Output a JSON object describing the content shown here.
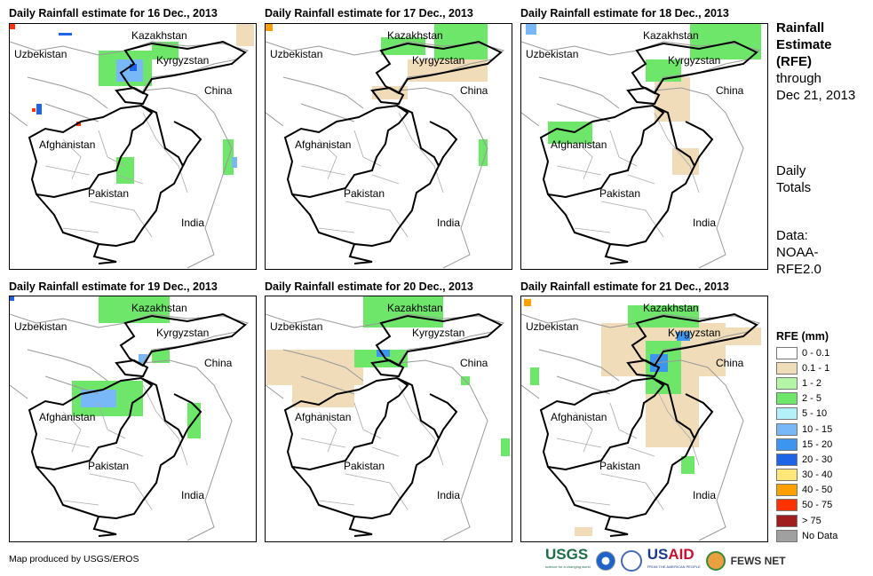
{
  "panels": [
    {
      "title": "Daily Rainfall estimate for 16 Dec., 2013"
    },
    {
      "title": "Daily Rainfall estimate for 17 Dec., 2013"
    },
    {
      "title": "Daily Rainfall estimate for 18 Dec., 2013"
    },
    {
      "title": "Daily Rainfall estimate for 19 Dec., 2013"
    },
    {
      "title": "Daily Rainfall estimate for 20 Dec., 2013"
    },
    {
      "title": "Daily Rainfall estimate for 21 Dec., 2013"
    }
  ],
  "map_labels": {
    "kazakhstan": "Kazakhstan",
    "uzbekistan": "Uzbekistan",
    "kyrgyzstan": "Kyrgyzstan",
    "china": "China",
    "afghanistan": "Afghanistan",
    "pakistan": "Pakistan",
    "india": "India"
  },
  "side": {
    "title1": "Rainfall",
    "title2": "Estimate",
    "title3": "(RFE)",
    "through": "through",
    "date": "Dec 21, 2013",
    "daily": "Daily",
    "totals": "Totals",
    "data": "Data:",
    "source1": "NOAA-",
    "source2": "RFE2.0"
  },
  "legend": {
    "title": "RFE (mm)",
    "items": [
      {
        "label": "0 - 0.1",
        "color": "#ffffff"
      },
      {
        "label": "0.1 - 1",
        "color": "#f0dcb8"
      },
      {
        "label": "1 - 2",
        "color": "#b4f5a8"
      },
      {
        "label": "2 - 5",
        "color": "#6ee66a"
      },
      {
        "label": "5 - 10",
        "color": "#b4f0f8"
      },
      {
        "label": "10 - 15",
        "color": "#78b8f8"
      },
      {
        "label": "15 - 20",
        "color": "#3c96f0"
      },
      {
        "label": "20 - 30",
        "color": "#1e64e6"
      },
      {
        "label": "30 - 40",
        "color": "#ffe678"
      },
      {
        "label": "40 - 50",
        "color": "#ffa000"
      },
      {
        "label": "50 - 75",
        "color": "#ff3200"
      },
      {
        "label": "> 75",
        "color": "#a01e1e"
      },
      {
        "label": "No Data",
        "color": "#a0a0a0"
      }
    ]
  },
  "credit": "Map produced by USGS/EROS",
  "logos": {
    "usgs": "USGS",
    "usgs_tag": "science for a changing world",
    "usaid": "USAID",
    "usaid_tag": "FROM THE AMERICAN PEOPLE",
    "fews": "FEWS NET"
  }
}
